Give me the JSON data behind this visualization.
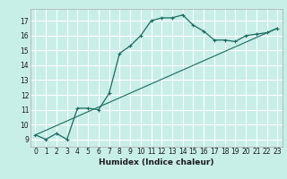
{
  "xlabel": "Humidex (Indice chaleur)",
  "bg_color": "#c8eee8",
  "grid_color": "#ffffff",
  "line_color": "#1a6b60",
  "xlim": [
    -0.5,
    23.5
  ],
  "ylim": [
    8.5,
    17.8
  ],
  "xticks": [
    0,
    1,
    2,
    3,
    4,
    5,
    6,
    7,
    8,
    9,
    10,
    11,
    12,
    13,
    14,
    15,
    16,
    17,
    18,
    19,
    20,
    21,
    22,
    23
  ],
  "yticks": [
    9,
    10,
    11,
    12,
    13,
    14,
    15,
    16,
    17
  ],
  "series1_x": [
    0,
    1,
    2,
    3,
    4,
    5,
    6,
    7,
    8,
    9,
    10,
    11,
    12,
    13,
    14,
    15,
    16,
    17,
    18,
    19,
    20,
    21,
    22,
    23
  ],
  "series1_y": [
    9.3,
    9.0,
    9.4,
    9.0,
    11.1,
    11.1,
    11.0,
    12.1,
    14.8,
    15.3,
    16.0,
    17.0,
    17.2,
    17.2,
    17.4,
    16.7,
    16.3,
    15.7,
    15.7,
    15.6,
    16.0,
    16.1,
    16.2,
    16.5
  ],
  "series2_x": [
    0,
    23
  ],
  "series2_y": [
    9.3,
    16.5
  ],
  "tick_fontsize": 5.5,
  "xlabel_fontsize": 6.5
}
